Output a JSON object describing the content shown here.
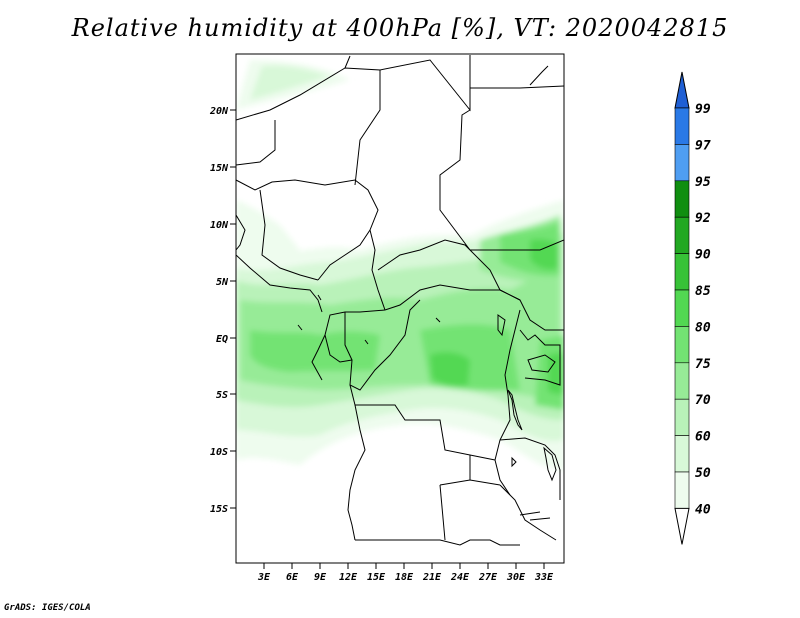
{
  "title": "Relative humidity at 400hPa [%], VT: 2020042815",
  "credit": "GrADS: IGES/COLA",
  "map": {
    "variable": "Relative humidity",
    "level": "400hPa",
    "units": "%",
    "valid_time": "2020042815",
    "lat_ticks": [
      "20N",
      "15N",
      "10N",
      "5N",
      "EQ",
      "5S",
      "10S",
      "15S"
    ],
    "lon_ticks": [
      "3E",
      "6E",
      "9E",
      "12E",
      "15E",
      "18E",
      "21E",
      "24E",
      "27E",
      "30E",
      "33E"
    ]
  },
  "colorbar": {
    "labels": [
      "99",
      "97",
      "95",
      "92",
      "90",
      "85",
      "80",
      "75",
      "70",
      "60",
      "50",
      "40"
    ],
    "colors": [
      "#1f5fd4",
      "#2a79e6",
      "#4f9ef2",
      "#108e10",
      "#22a822",
      "#37c237",
      "#52d852",
      "#73e373",
      "#97eb97",
      "#b9f2b9",
      "#d8f8d8",
      "#eefcee",
      "#ffffff"
    ]
  }
}
